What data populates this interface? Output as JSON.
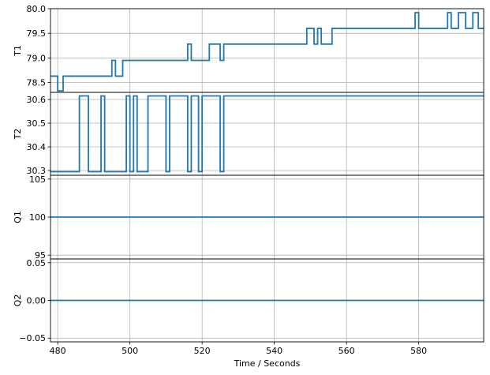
{
  "chart_data": {
    "type": "line",
    "xlabel": "Time / Seconds",
    "xlim": [
      478,
      598
    ],
    "xticks": [
      480,
      500,
      520,
      540,
      560,
      580
    ],
    "line_color": "#1f77b4",
    "grid": true,
    "panels": [
      {
        "ylabel": "T1",
        "ylim": [
          78.3,
          80.0
        ],
        "yticks": [
          78.5,
          79.0,
          79.5,
          80.0
        ],
        "ytick_labels": [
          "78.5",
          "79.0",
          "79.5",
          "80.0"
        ],
        "x": [
          478,
          480,
          480,
          481.5,
          481.5,
          495,
          495,
          496,
          496,
          498,
          498,
          516,
          516,
          517,
          517,
          522,
          522,
          525,
          525,
          526,
          526,
          549,
          549,
          551,
          551,
          552,
          552,
          553,
          553,
          556,
          556,
          579,
          579,
          580,
          580,
          588,
          588,
          589,
          589,
          591,
          591,
          593,
          593,
          595,
          595,
          596.5,
          596.5,
          598
        ],
        "y": [
          78.63,
          78.63,
          78.33,
          78.33,
          78.63,
          78.63,
          78.95,
          78.95,
          78.63,
          78.63,
          78.95,
          78.95,
          79.28,
          79.28,
          78.95,
          78.95,
          79.28,
          79.28,
          78.95,
          78.95,
          79.28,
          79.28,
          79.6,
          79.6,
          79.28,
          79.28,
          79.6,
          79.6,
          79.28,
          79.28,
          79.6,
          79.6,
          79.92,
          79.92,
          79.6,
          79.6,
          79.92,
          79.92,
          79.6,
          79.6,
          79.92,
          79.92,
          79.6,
          79.6,
          79.92,
          79.92,
          79.6,
          79.6
        ]
      },
      {
        "ylabel": "T2",
        "ylim": [
          30.28,
          30.63
        ],
        "yticks": [
          30.3,
          30.4,
          30.5,
          30.6
        ],
        "ytick_labels": [
          "30.3",
          "30.4",
          "30.5",
          "30.6"
        ],
        "x": [
          478,
          486,
          486,
          488.5,
          488.5,
          492,
          492,
          493,
          493,
          499,
          499,
          500,
          500,
          501,
          501,
          502,
          502,
          505,
          505,
          510,
          510,
          511,
          511,
          516,
          516,
          517,
          517,
          519,
          519,
          520,
          520,
          525,
          525,
          526,
          526,
          598
        ],
        "y": [
          30.295,
          30.295,
          30.615,
          30.615,
          30.295,
          30.295,
          30.615,
          30.615,
          30.295,
          30.295,
          30.615,
          30.615,
          30.295,
          30.295,
          30.615,
          30.615,
          30.295,
          30.295,
          30.615,
          30.615,
          30.295,
          30.295,
          30.615,
          30.615,
          30.295,
          30.295,
          30.615,
          30.615,
          30.295,
          30.295,
          30.615,
          30.615,
          30.295,
          30.295,
          30.615,
          30.615
        ]
      },
      {
        "ylabel": "Q1",
        "ylim": [
          94.5,
          105.5
        ],
        "yticks": [
          95,
          100,
          105
        ],
        "ytick_labels": [
          "95",
          "100",
          "105"
        ],
        "x": [
          478,
          598
        ],
        "y": [
          100,
          100
        ]
      },
      {
        "ylabel": "Q2",
        "ylim": [
          -0.055,
          0.055
        ],
        "yticks": [
          -0.05,
          0.0,
          0.05
        ],
        "ytick_labels": [
          "−0.05",
          "0.00",
          "0.05"
        ],
        "x": [
          478,
          598
        ],
        "y": [
          0,
          0
        ]
      }
    ]
  }
}
